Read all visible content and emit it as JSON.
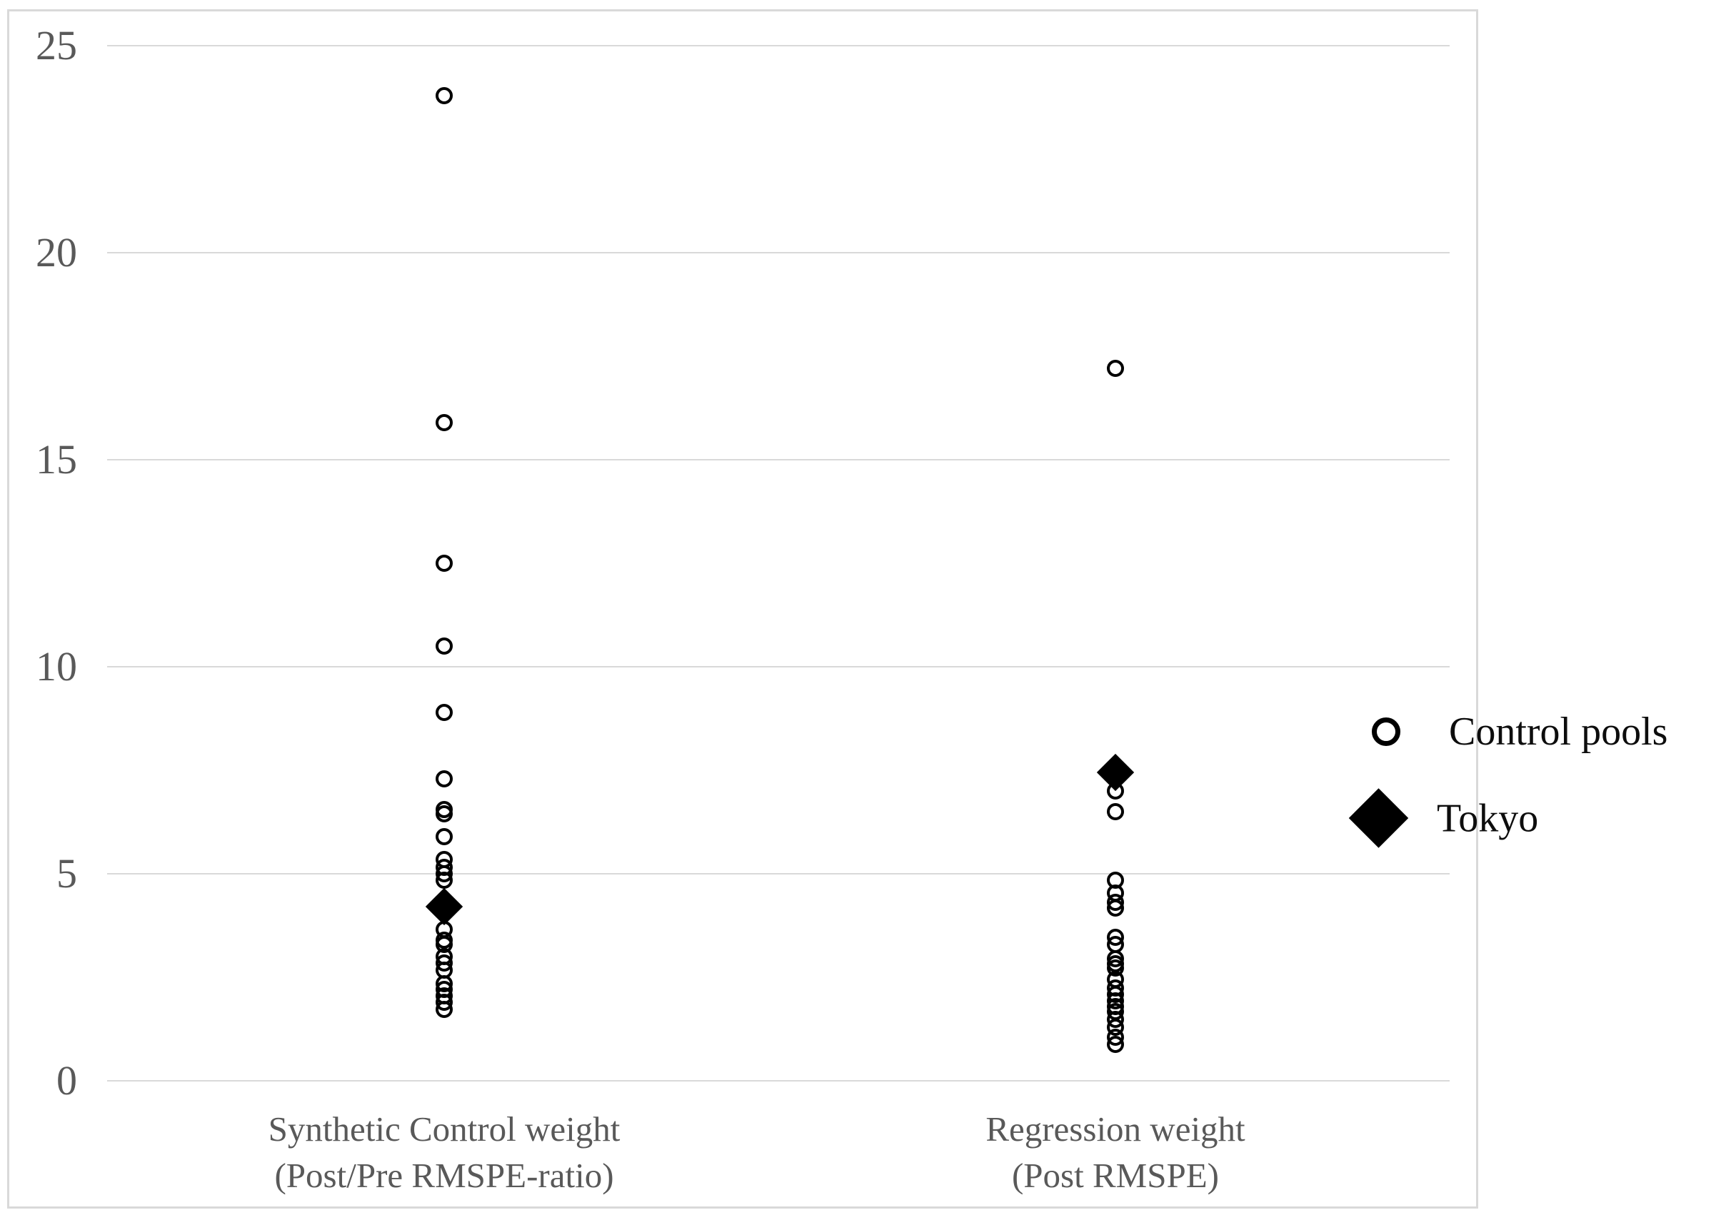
{
  "figure": {
    "background_color": "#ffffff",
    "border_color": "#d9d9d9",
    "gridline_color": "#d9d9d9",
    "axis_text_color": "#595959",
    "marker_color": "#000000",
    "legend_text_color": "#0d0d0d"
  },
  "chart_data": {
    "type": "scatter",
    "title": "",
    "xlabel": "",
    "ylabel": "",
    "grid": true,
    "legend_position": "right",
    "y_axis": {
      "tick_values": [
        25,
        20,
        15,
        10,
        5,
        0
      ],
      "tick_labels": [
        "25",
        "20",
        "15",
        "10",
        "5",
        "0"
      ],
      "min": 0,
      "max": 25.9
    },
    "categories": [
      {
        "id": "synthetic",
        "label_line1": "Synthetic Control weight",
        "label_line2": "(Post/Pre RMSPE-ratio)"
      },
      {
        "id": "regression",
        "label_line1": "Regression weight",
        "label_line2": "(Post RMSPE)"
      }
    ],
    "series": [
      {
        "name": "Control pools",
        "marker": "open-circle",
        "values_by_category": [
          [
            23.8,
            15.9,
            12.5,
            10.5,
            8.9,
            7.3,
            6.55,
            6.45,
            5.9,
            5.35,
            5.15,
            5.0,
            4.85,
            3.65,
            3.4,
            3.3,
            3.0,
            2.85,
            2.67,
            2.35,
            2.2,
            2.05,
            1.9,
            1.72
          ],
          [
            17.2,
            7.0,
            6.5,
            4.85,
            4.54,
            4.31,
            4.17,
            3.46,
            3.29,
            2.95,
            2.83,
            2.72,
            2.45,
            2.25,
            2.08,
            1.93,
            1.8,
            1.68,
            1.48,
            1.3,
            1.05,
            0.88
          ]
        ]
      },
      {
        "name": "Tokyo",
        "marker": "filled-diamond",
        "values_by_category": [
          [
            4.2
          ],
          [
            7.44
          ]
        ]
      }
    ],
    "legend": {
      "items": [
        {
          "label": "Control pools",
          "marker": "open-circle"
        },
        {
          "label": "Tokyo",
          "marker": "filled-diamond"
        }
      ]
    }
  }
}
